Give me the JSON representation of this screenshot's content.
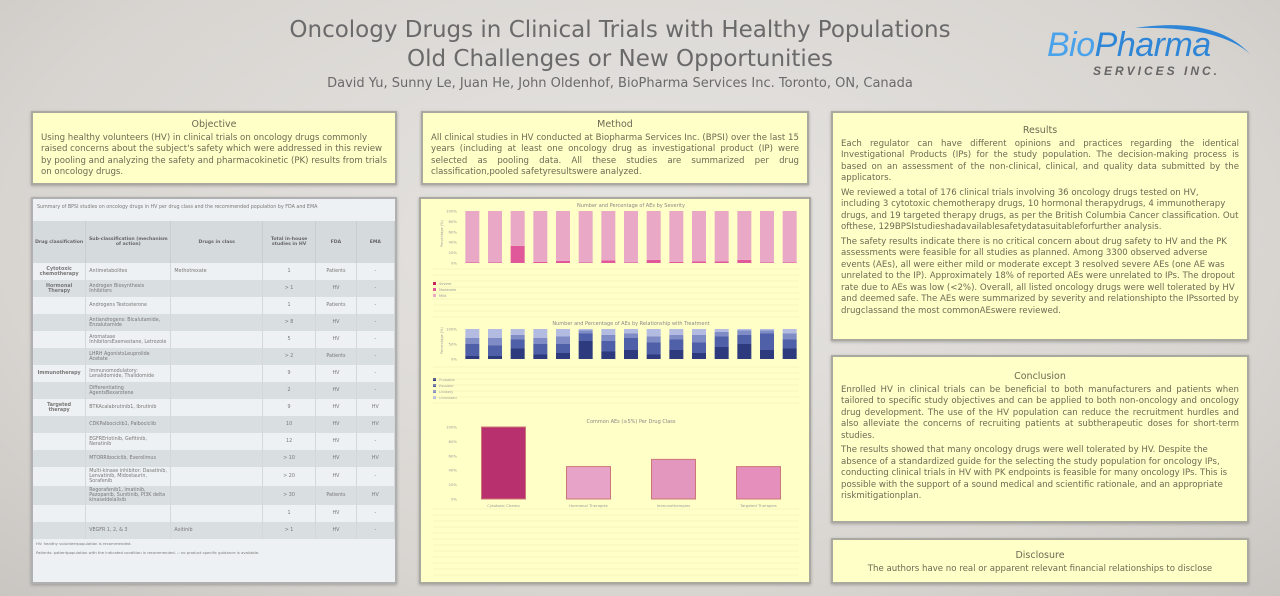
{
  "header": {
    "title_line1": "Oncology Drugs in Clinical Trials with Healthy Populations",
    "title_line2": "Old Challenges or New Opportunities",
    "authors": "David Yu, Sunny Le, Juan He, John Oldenhof, BioPharma Services Inc. Toronto, ON, Canada"
  },
  "logo": {
    "brand_bio": "Bio",
    "brand_pharma": "Pharma",
    "tagline": "SERVICES INC.",
    "colors": {
      "blue": "#2f86d6",
      "grey": "#666666"
    }
  },
  "objective": {
    "heading": "Objective",
    "text": "Using healthy volunteers (HV) in clinical trials on oncology drugs commonly raised concerns about the subject's safety which were addressed in this review by pooling and analyzing the safety and pharmacokinetic (PK) results from trials on oncology drugs."
  },
  "method": {
    "heading": "Method",
    "text": "All clinical studies in HV conducted at Biopharma Services Inc. (BPSI) over the last 15 years (including at least one oncology drug as investigational product (IP) were selected as pooling data. All these studies are summarized per drug classification,pooled safetyresultswere analyzed."
  },
  "results": {
    "heading": "Results",
    "paragraphs": [
      "Each regulator can have different opinions and practices regarding the identical Investigational Products (IPs) for the study population. The decision-making process is based on an assessment of the non-clinical, clinical, and quality data submitted by the applicators.",
      "We reviewed a total of 176 clinical trials involving 36 oncology drugs tested on HV, including 3 cytotoxic chemotherapy drugs, 10 hormonal therapydrugs, 4 immunotherapy drugs, and 19 targeted therapy drugs, as per the British Columbia Cancer classification. Out ofthese, 129BPSIstudieshadavailablesafetydatasuitableforfurther analysis.",
      "The safety results indicate there is no critical concern about drug safety to HV and the PK assessments were feasible for all studies as planned. Among 3300 observed adverse events (AEs), all were either mild or moderate except 3 resolved severe AEs (one AE was unrelated to the IP). Approximately 18% of reported AEs were unrelated to IPs. The dropout rate due to AEs was low (<2%). Overall, all listed oncology drugs were well tolerated by HV and deemed safe. The AEs were summarized by severity and relationshipto the IPssorted by drugclassand the most commonAEswere reviewed."
    ]
  },
  "conclusion": {
    "heading": "Conclusion",
    "paragraphs": [
      "Enrolled HV in clinical trials can be beneficial to both manufacturers and patients when tailored to specific study objectives and can be applied to both non-oncology and oncology drug development. The use of the HV population can reduce the recruitment hurdles and also alleviate the concerns of recruiting patients at subtherapeutic doses for short-term studies.",
      "The results showed that many oncology drugs were well tolerated by HV. Despite the absence of a standardized guide for the selecting the study population for oncology IPs, conducting clinical trials in HV with PK endpoints is feasible for many oncology IPs. This is possible with the support of a sound medical and scientific rationale, and an appropriate riskmitigationplan."
    ]
  },
  "disclosure": {
    "heading": "Disclosure",
    "text": "The authors have no real or apparent relevant financial relationships to disclose"
  },
  "table": {
    "caption": "Summary of BPSI studies on oncology drugs in HV per drug class and the recommended population by FDA and EMA",
    "headers": [
      "Drug classification",
      "Sub-classification (mechanism of action)",
      "Drugs in class",
      "Total in-house studies in HV",
      "FDA",
      "EMA"
    ],
    "rows": [
      [
        "Cytotoxic chemotherapy",
        "Antimetabolites",
        "Methotrexate",
        "1",
        "Patients",
        "-"
      ],
      [
        "Hormonal Therapy",
        "Androgen Biosynthesis Inhibitors",
        "",
        "> 1",
        "HV",
        "-"
      ],
      [
        "",
        "Androgens Testosterone",
        "",
        "1",
        "Patients",
        "-"
      ],
      [
        "",
        "Antiandrogens: Bicalutamide, Enzalutamide",
        "",
        "> 8",
        "HV",
        "-"
      ],
      [
        "",
        "Aromatase InhibitorsExemestane, Letrozole",
        "",
        "5",
        "HV",
        "-"
      ],
      [
        "",
        "LHRH AgonistsLeuprolide Acetate",
        "",
        "> 2",
        "Patients",
        "-"
      ],
      [
        "Immunotherapy",
        "Immunomodulatory: Lenalidomide, Thalidomide",
        "",
        "9",
        "HV",
        "-"
      ],
      [
        "",
        "Differentiating AgentsBexarotene",
        "",
        "2",
        "HV",
        "-"
      ],
      [
        "Targeted therapy",
        "BTKAcalabrutinib1, Ibrutinib",
        "",
        "9",
        "HV",
        "HV"
      ],
      [
        "",
        "CDKPalbociclib1, Palbociclib",
        "",
        "10",
        "HV",
        "HV"
      ],
      [
        "",
        "EGFRErlotinib, Gefitinib, Neratinib",
        "",
        "12",
        "HV",
        "-"
      ],
      [
        "",
        "MTORRibociclib, Everolimus",
        "",
        "> 10",
        "HV",
        "HV"
      ],
      [
        "",
        "Multi-kinase inhibitor: Dasatinib, Lenvatinib, Midostaurin, Sorafenib",
        "",
        "> 20",
        "HV",
        "-"
      ],
      [
        "",
        "Regorafenib1, Imatinib, Pazopanib, Sunitinib, PI3K delta kinaseIdelalisib",
        "",
        "> 30",
        "Patients",
        "HV"
      ],
      [
        "",
        "",
        "",
        "1",
        "HV",
        "-"
      ],
      [
        "",
        "VEGFR 1, 2, & 3",
        "Axitinib",
        "> 1",
        "HV",
        "-"
      ]
    ],
    "footnotes": [
      "HV: healthy volunteerpopulation is recommended.",
      "Patients: patientpopulation with the indicated condition is recommended. -: no product specific guidance is available."
    ]
  },
  "chart_data": [
    {
      "type": "bar",
      "title": "Number and Percentage of AEs by Severity",
      "ylabel": "Percentage (%)",
      "ylim": [
        0,
        100
      ],
      "yticks": [
        "0%",
        "20%",
        "40%",
        "60%",
        "80%",
        "100%"
      ],
      "categories": [
        "1",
        "2",
        "3",
        "4",
        "5",
        "6",
        "7",
        "8",
        "9",
        "10",
        "11",
        "12",
        "13",
        "14",
        "15"
      ],
      "series": [
        {
          "name": "Severe",
          "values": [
            0,
            0,
            0,
            0,
            0,
            0,
            0,
            0,
            0,
            0,
            0,
            0,
            0,
            0,
            0
          ]
        },
        {
          "name": "Moderate",
          "values": [
            1,
            1,
            33,
            2,
            4,
            1,
            5,
            1,
            6,
            2,
            3,
            3,
            6,
            1,
            1
          ]
        },
        {
          "name": "Mild",
          "values": [
            99,
            99,
            67,
            98,
            96,
            99,
            95,
            99,
            94,
            98,
            97,
            97,
            94,
            99,
            99
          ]
        }
      ],
      "colors": [
        "#c9205f",
        "#e0579a",
        "#e9a8c6"
      ]
    },
    {
      "type": "bar",
      "title": "Number and Percentage of AEs by Relationship with Treatment",
      "ylabel": "Percentage (%)",
      "ylim": [
        0,
        100
      ],
      "yticks": [
        "0%",
        "50%",
        "100%"
      ],
      "categories": [
        "1",
        "2",
        "3",
        "4",
        "5",
        "6",
        "7",
        "8",
        "9",
        "10",
        "11",
        "12",
        "13",
        "14",
        "15"
      ],
      "series": [
        {
          "name": "Probable",
          "values": [
            10,
            10,
            35,
            15,
            20,
            60,
            25,
            30,
            15,
            30,
            20,
            40,
            50,
            30,
            35
          ]
        },
        {
          "name": "Possible",
          "values": [
            40,
            35,
            30,
            35,
            30,
            25,
            35,
            40,
            40,
            35,
            35,
            35,
            30,
            55,
            30
          ]
        },
        {
          "name": "Unlikely",
          "values": [
            20,
            25,
            15,
            20,
            25,
            10,
            20,
            15,
            20,
            15,
            25,
            15,
            15,
            10,
            20
          ]
        },
        {
          "name": "Unrelated",
          "values": [
            30,
            30,
            20,
            30,
            25,
            5,
            20,
            15,
            25,
            20,
            20,
            10,
            5,
            5,
            15
          ]
        }
      ],
      "colors": [
        "#2d3a7e",
        "#4f5fa8",
        "#7f8cc6",
        "#b3bbe0"
      ]
    },
    {
      "type": "bar",
      "title": "Common AEs (≥5%) Per Drug Class",
      "ylim": [
        0,
        100
      ],
      "yticks": [
        "0%",
        "20%",
        "40%",
        "60%",
        "80%",
        "100%"
      ],
      "categories": [
        "Cytotoxic Chemo",
        "Hormonal Therapies",
        "Immunotherapies",
        "Targeted Therapies"
      ],
      "values": [
        100,
        45,
        55,
        45
      ],
      "colors": [
        "#b8306e",
        "#e8a4c8",
        "#e397bf",
        "#e58fbd"
      ]
    }
  ]
}
